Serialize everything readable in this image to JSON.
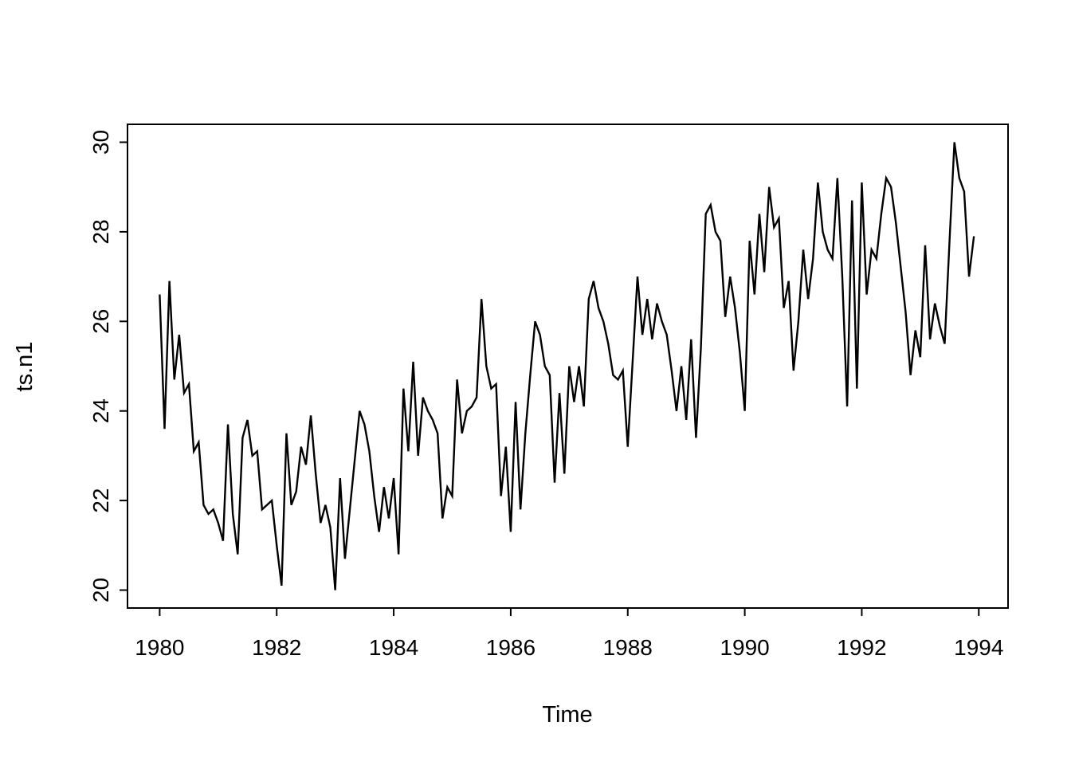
{
  "figure": {
    "background": "#ffffff",
    "foreground": "#000000"
  },
  "chart_data": {
    "type": "line",
    "title": "",
    "xlabel": "Time",
    "ylabel": "ts.n1",
    "grid": false,
    "legend": null,
    "line_color": "#000000",
    "xticks": [
      1980,
      1982,
      1984,
      1986,
      1988,
      1990,
      1992,
      1994
    ],
    "yticks": [
      20,
      22,
      24,
      26,
      28,
      30
    ],
    "xlim": [
      1979.45,
      1994.5
    ],
    "ylim": [
      19.6,
      30.4
    ],
    "x_start_year": 1980,
    "frequency_per_year": 12,
    "series": [
      {
        "name": "ts.n1",
        "values": [
          26.6,
          23.6,
          26.9,
          24.7,
          25.7,
          24.4,
          24.6,
          23.1,
          23.3,
          21.9,
          21.7,
          21.8,
          21.5,
          21.1,
          23.7,
          21.7,
          20.8,
          23.4,
          23.8,
          23.0,
          23.1,
          21.8,
          21.9,
          22.0,
          21.0,
          20.1,
          23.5,
          21.9,
          22.2,
          23.2,
          22.8,
          23.9,
          22.6,
          21.5,
          21.9,
          21.4,
          20.0,
          22.5,
          20.7,
          21.8,
          22.9,
          24.0,
          23.7,
          23.1,
          22.1,
          21.3,
          22.3,
          21.6,
          22.5,
          20.8,
          24.5,
          23.1,
          25.1,
          23.0,
          24.3,
          24.0,
          23.8,
          23.5,
          21.6,
          22.3,
          22.1,
          24.7,
          23.5,
          24.0,
          24.1,
          24.3,
          26.5,
          25.0,
          24.5,
          24.6,
          22.1,
          23.2,
          21.3,
          24.2,
          21.8,
          23.5,
          24.8,
          26.0,
          25.7,
          25.0,
          24.8,
          22.4,
          24.4,
          22.6,
          25.0,
          24.2,
          25.0,
          24.1,
          26.5,
          26.9,
          26.3,
          26.0,
          25.5,
          24.8,
          24.7,
          24.9,
          23.2,
          25.1,
          27.0,
          25.7,
          26.5,
          25.6,
          26.4,
          26.0,
          25.7,
          24.9,
          24.0,
          25.0,
          23.8,
          25.6,
          23.4,
          25.4,
          28.4,
          28.6,
          28.0,
          27.8,
          26.1,
          27.0,
          26.3,
          25.3,
          24.0,
          27.8,
          26.6,
          28.4,
          27.1,
          29.0,
          28.1,
          28.3,
          26.3,
          26.9,
          24.9,
          26.0,
          27.6,
          26.5,
          27.4,
          29.1,
          28.0,
          27.6,
          27.4,
          29.2,
          27.0,
          24.1,
          28.7,
          24.5,
          29.1,
          26.6,
          27.6,
          27.4,
          28.4,
          29.2,
          29.0,
          28.2,
          27.2,
          26.2,
          24.8,
          25.8,
          25.2,
          27.7,
          25.6,
          26.4,
          25.9,
          25.5,
          27.8,
          30.0,
          29.2,
          28.9,
          27.0,
          27.9
        ]
      }
    ]
  }
}
